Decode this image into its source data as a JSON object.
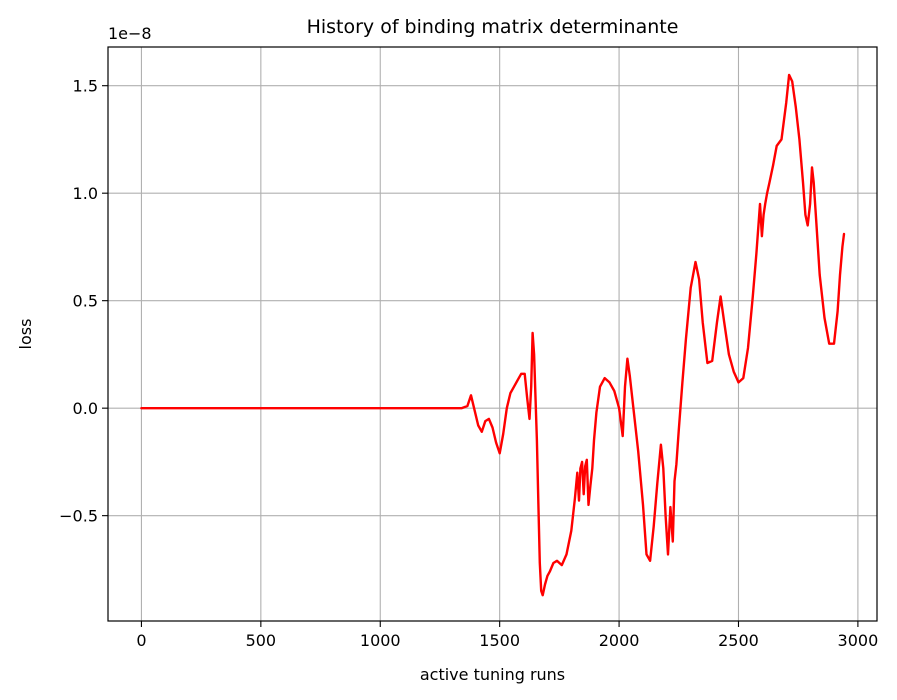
{
  "chart_data": {
    "type": "line",
    "title": "History of binding matrix determinante",
    "xlabel": "active tuning runs",
    "ylabel": "loss",
    "y_offset_label": "1e−8",
    "y_scale_factor": 1e-08,
    "xlim": [
      -140,
      3080
    ],
    "ylim": [
      -0.99,
      1.68
    ],
    "grid": true,
    "x_ticks": [
      {
        "value": 0,
        "label": "0"
      },
      {
        "value": 500,
        "label": "500"
      },
      {
        "value": 1000,
        "label": "1000"
      },
      {
        "value": 1500,
        "label": "1500"
      },
      {
        "value": 2000,
        "label": "2000"
      },
      {
        "value": 2500,
        "label": "2500"
      },
      {
        "value": 3000,
        "label": "3000"
      }
    ],
    "y_ticks": [
      {
        "value": -0.5,
        "label": "−0.5"
      },
      {
        "value": 0.0,
        "label": "0.0"
      },
      {
        "value": 0.5,
        "label": "0.5"
      },
      {
        "value": 1.0,
        "label": "1.0"
      },
      {
        "value": 1.5,
        "label": "1.5"
      }
    ],
    "series": [
      {
        "color": "#ff0000",
        "x": [
          0,
          200,
          400,
          600,
          800,
          1000,
          1200,
          1340,
          1365,
          1380,
          1395,
          1410,
          1425,
          1440,
          1455,
          1470,
          1485,
          1500,
          1515,
          1530,
          1545,
          1560,
          1575,
          1590,
          1605,
          1615,
          1625,
          1632,
          1638,
          1644,
          1650,
          1656,
          1662,
          1668,
          1674,
          1680,
          1690,
          1700,
          1710,
          1725,
          1740,
          1760,
          1780,
          1800,
          1815,
          1825,
          1832,
          1838,
          1845,
          1852,
          1858,
          1865,
          1872,
          1880,
          1888,
          1895,
          1905,
          1920,
          1940,
          1960,
          1980,
          2000,
          2015,
          2025,
          2035,
          2045,
          2060,
          2080,
          2100,
          2115,
          2130,
          2145,
          2160,
          2175,
          2185,
          2195,
          2205,
          2215,
          2225,
          2232,
          2240,
          2250,
          2265,
          2280,
          2300,
          2320,
          2335,
          2350,
          2370,
          2390,
          2410,
          2425,
          2440,
          2460,
          2480,
          2500,
          2520,
          2540,
          2560,
          2575,
          2590,
          2598,
          2605,
          2612,
          2620,
          2630,
          2645,
          2660,
          2680,
          2700,
          2712,
          2725,
          2740,
          2755,
          2770,
          2780,
          2790,
          2800,
          2808,
          2815,
          2825,
          2840,
          2860,
          2880,
          2900,
          2915,
          2925,
          2935,
          2942
        ],
        "y": [
          0.0,
          0.0,
          0.0,
          0.0,
          0.0,
          0.0,
          0.0,
          0.0,
          0.01,
          0.06,
          -0.01,
          -0.08,
          -0.11,
          -0.06,
          -0.05,
          -0.09,
          -0.16,
          -0.21,
          -0.12,
          0.0,
          0.07,
          0.1,
          0.13,
          0.16,
          0.16,
          0.05,
          -0.05,
          0.1,
          0.35,
          0.25,
          0.05,
          -0.15,
          -0.45,
          -0.72,
          -0.85,
          -0.87,
          -0.82,
          -0.78,
          -0.76,
          -0.72,
          -0.71,
          -0.73,
          -0.68,
          -0.57,
          -0.42,
          -0.3,
          -0.43,
          -0.28,
          -0.25,
          -0.4,
          -0.27,
          -0.24,
          -0.45,
          -0.36,
          -0.28,
          -0.15,
          -0.02,
          0.1,
          0.14,
          0.12,
          0.08,
          0.0,
          -0.13,
          0.1,
          0.23,
          0.15,
          0.0,
          -0.2,
          -0.45,
          -0.68,
          -0.71,
          -0.55,
          -0.35,
          -0.17,
          -0.28,
          -0.5,
          -0.68,
          -0.46,
          -0.62,
          -0.34,
          -0.26,
          -0.1,
          0.12,
          0.32,
          0.56,
          0.68,
          0.6,
          0.4,
          0.21,
          0.22,
          0.4,
          0.52,
          0.4,
          0.25,
          0.17,
          0.12,
          0.14,
          0.28,
          0.52,
          0.72,
          0.95,
          0.8,
          0.9,
          0.95,
          1.0,
          1.05,
          1.13,
          1.22,
          1.25,
          1.42,
          1.55,
          1.52,
          1.4,
          1.25,
          1.05,
          0.9,
          0.85,
          0.95,
          1.12,
          1.05,
          0.88,
          0.62,
          0.42,
          0.3,
          0.3,
          0.45,
          0.62,
          0.75,
          0.81
        ]
      }
    ]
  }
}
